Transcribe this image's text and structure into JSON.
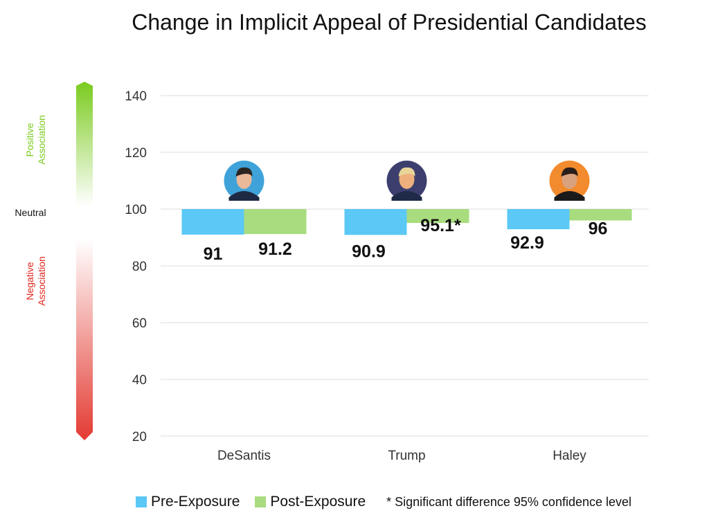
{
  "chart_data": {
    "type": "bar",
    "title": "Change in Implicit Appeal of Presidential Candidates",
    "categories": [
      "DeSantis",
      "Trump",
      "Haley"
    ],
    "baseline": 100,
    "series": [
      {
        "name": "Pre-Exposure",
        "color": "#5BC8F5",
        "values": [
          91,
          90.9,
          92.9
        ],
        "labels": [
          "91",
          "90.9",
          "92.9"
        ]
      },
      {
        "name": "Post-Exposure",
        "color": "#A8DC7E",
        "values": [
          91.2,
          95.1,
          96
        ],
        "labels": [
          "91.2",
          "95.1*",
          "96"
        ]
      }
    ],
    "ylim": [
      20,
      140
    ],
    "yticks": [
      20,
      40,
      60,
      80,
      100,
      120,
      140
    ],
    "xlabel": "",
    "ylabel": "",
    "grid": true,
    "legend_position": "bottom",
    "note": "* Significant difference 95% confidence level",
    "scale": {
      "positive_label": [
        "Positive",
        "Association"
      ],
      "neutral_label": "Neutral",
      "negative_label": [
        "Negative",
        "Association"
      ],
      "positive_color": "#7ACB1E",
      "negative_color": "#E0251B"
    },
    "avatars": [
      {
        "name": "desantis-avatar",
        "bg": "#3FA3D9",
        "skin": "#E9B99A",
        "hair": "#2B2522",
        "suit": "#1E2A44"
      },
      {
        "name": "trump-avatar",
        "bg": "#3C3F6E",
        "skin": "#EFB07E",
        "hair": "#E9D59A",
        "suit": "#1F2A48"
      },
      {
        "name": "haley-avatar",
        "bg": "#F28A2E",
        "skin": "#D9A27F",
        "hair": "#2A1E1A",
        "suit": "#1A1A1A"
      }
    ]
  }
}
